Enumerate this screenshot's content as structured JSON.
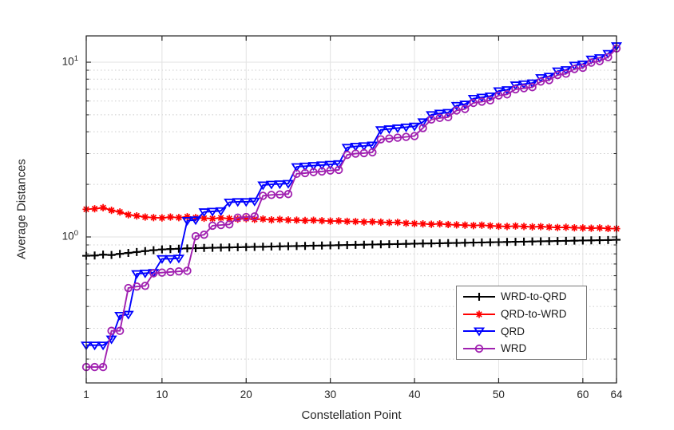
{
  "chart_data": {
    "type": "line",
    "title": "",
    "xlabel": "Constellation Point",
    "ylabel": "Average Distances",
    "yscale": "log",
    "grid": "major solid gray, y-minor dotted",
    "legend_position": "lower right inside plot",
    "xlim": [
      1,
      64
    ],
    "ylim": [
      0.146,
      14.15
    ],
    "x_ticks": [
      1,
      10,
      20,
      30,
      40,
      50,
      60,
      64
    ],
    "y_major_ticks": [
      {
        "value": 1,
        "base": "10",
        "exp": "0"
      },
      {
        "value": 10,
        "base": "10",
        "exp": "1"
      }
    ],
    "y_minor_ticks": [
      0.2,
      0.3,
      0.4,
      0.5,
      0.6,
      0.7,
      0.8,
      0.9,
      2,
      3,
      4,
      5,
      6,
      7,
      8,
      9
    ],
    "x_values": "integers 1 to 64",
    "series": [
      {
        "name": "WRD-to-QRD",
        "color": "#000000",
        "marker": "plus",
        "values": [
          0.78,
          0.783,
          0.792,
          0.788,
          0.8,
          0.81,
          0.82,
          0.83,
          0.84,
          0.848,
          0.852,
          0.856,
          0.86,
          0.862,
          0.865,
          0.867,
          0.869,
          0.871,
          0.873,
          0.875,
          0.877,
          0.879,
          0.881,
          0.883,
          0.885,
          0.887,
          0.889,
          0.891,
          0.893,
          0.895,
          0.897,
          0.899,
          0.901,
          0.903,
          0.905,
          0.907,
          0.909,
          0.911,
          0.913,
          0.915,
          0.917,
          0.918,
          0.92,
          0.922,
          0.924,
          0.926,
          0.928,
          0.93,
          0.932,
          0.934,
          0.936,
          0.938,
          0.94,
          0.942,
          0.944,
          0.946,
          0.948,
          0.95,
          0.952,
          0.954,
          0.956,
          0.958,
          0.96,
          0.963
        ]
      },
      {
        "name": "QRD-to-WRD",
        "color": "#FF0000",
        "marker": "asterisk",
        "values": [
          1.44,
          1.45,
          1.47,
          1.42,
          1.39,
          1.34,
          1.32,
          1.3,
          1.29,
          1.285,
          1.3,
          1.29,
          1.305,
          1.29,
          1.28,
          1.275,
          1.285,
          1.275,
          1.265,
          1.272,
          1.26,
          1.266,
          1.252,
          1.26,
          1.25,
          1.248,
          1.242,
          1.246,
          1.238,
          1.232,
          1.236,
          1.228,
          1.225,
          1.218,
          1.222,
          1.215,
          1.208,
          1.212,
          1.198,
          1.192,
          1.188,
          1.182,
          1.188,
          1.178,
          1.172,
          1.168,
          1.162,
          1.168,
          1.158,
          1.152,
          1.148,
          1.155,
          1.148,
          1.142,
          1.146,
          1.138,
          1.132,
          1.136,
          1.128,
          1.126,
          1.122,
          1.126,
          1.118,
          1.115
        ]
      },
      {
        "name": "QRD",
        "color": "#0000FF",
        "marker": "triangle-down",
        "values": [
          0.24,
          0.24,
          0.24,
          0.26,
          0.355,
          0.36,
          0.615,
          0.62,
          0.625,
          0.75,
          0.75,
          0.755,
          1.24,
          1.25,
          1.39,
          1.4,
          1.41,
          1.58,
          1.59,
          1.59,
          1.6,
          1.98,
          2.0,
          2.01,
          2.02,
          2.52,
          2.54,
          2.56,
          2.58,
          2.6,
          2.62,
          3.25,
          3.3,
          3.32,
          3.35,
          4.1,
          4.15,
          4.2,
          4.25,
          4.3,
          4.55,
          5.0,
          5.1,
          5.15,
          5.65,
          5.75,
          6.2,
          6.3,
          6.4,
          6.85,
          6.95,
          7.4,
          7.5,
          7.6,
          8.15,
          8.3,
          8.9,
          9.05,
          9.6,
          9.75,
          10.4,
          10.6,
          11.2,
          12.4
        ]
      },
      {
        "name": "WRD",
        "color": "#A020B0",
        "marker": "circle",
        "values": [
          0.18,
          0.18,
          0.18,
          0.29,
          0.29,
          0.51,
          0.52,
          0.525,
          0.62,
          0.625,
          0.63,
          0.635,
          0.64,
          1.01,
          1.03,
          1.16,
          1.17,
          1.18,
          1.29,
          1.3,
          1.31,
          1.72,
          1.74,
          1.75,
          1.76,
          2.3,
          2.32,
          2.35,
          2.37,
          2.4,
          2.42,
          2.95,
          3.0,
          3.02,
          3.05,
          3.62,
          3.66,
          3.7,
          3.74,
          3.78,
          4.2,
          4.7,
          4.8,
          4.85,
          5.3,
          5.4,
          5.85,
          5.95,
          6.05,
          6.45,
          6.55,
          7.0,
          7.1,
          7.2,
          7.75,
          7.9,
          8.45,
          8.6,
          9.15,
          9.3,
          9.95,
          10.15,
          10.7,
          12.0
        ]
      }
    ]
  },
  "colors": {
    "spine": "#262626",
    "tick_text": "#262626",
    "grid_major": "#e2e2e2",
    "grid_minor": "#cccccc",
    "legend_border": "#777777"
  }
}
